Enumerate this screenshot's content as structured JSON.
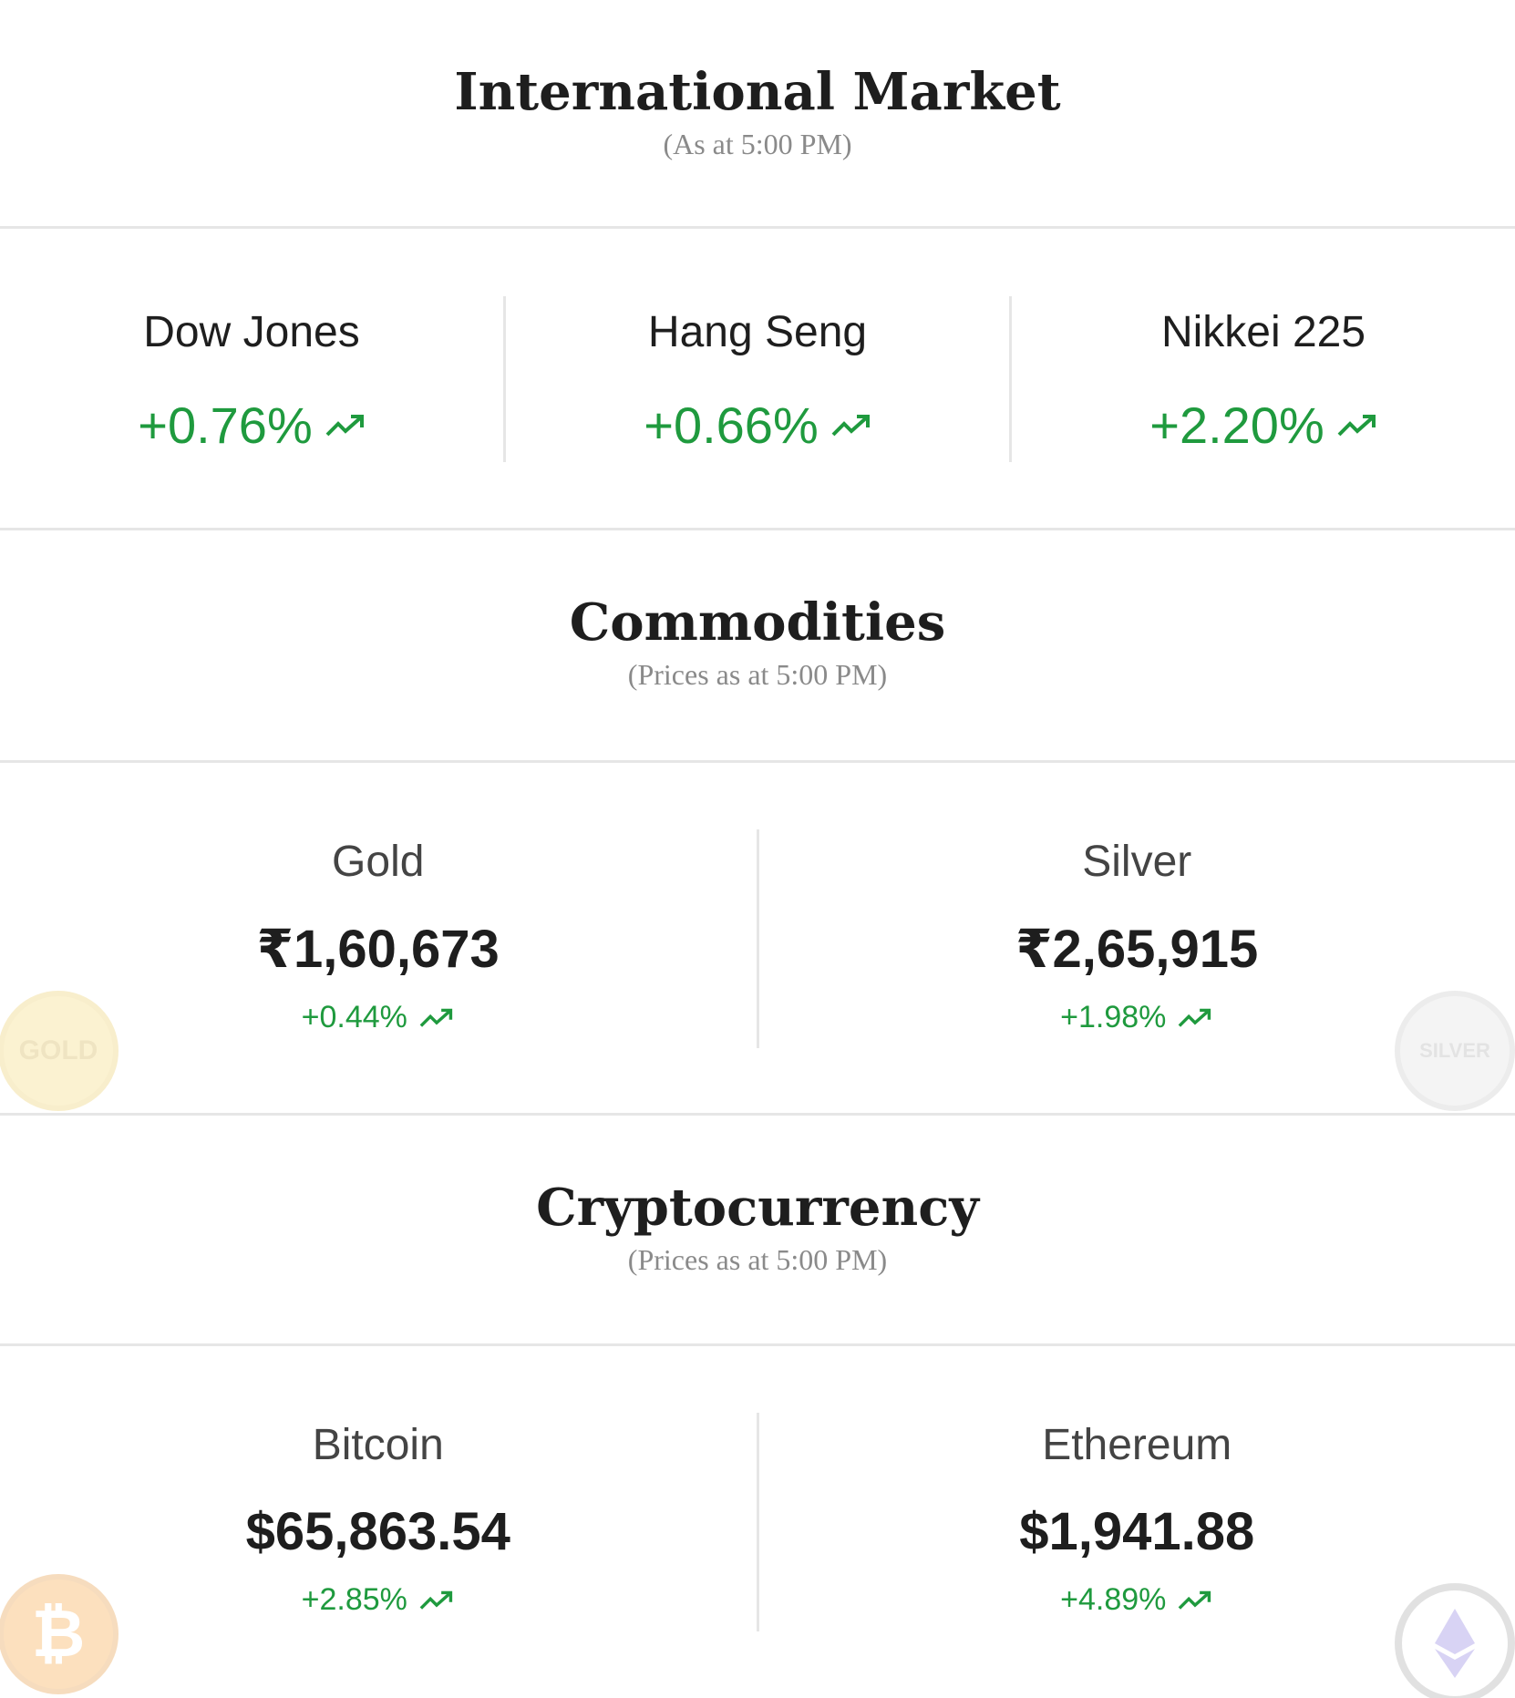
{
  "international": {
    "title": "International Market",
    "subtitle": "(As at 5:00 PM)",
    "indices": [
      {
        "name": "Dow Jones",
        "change": "+0.76%",
        "trend": "up"
      },
      {
        "name": "Hang Seng",
        "change": "+0.66%",
        "trend": "up"
      },
      {
        "name": "Nikkei 225",
        "change": "+2.20%",
        "trend": "up"
      }
    ]
  },
  "commodities": {
    "title": "Commodities",
    "subtitle": "(Prices as at 5:00 PM)",
    "items": [
      {
        "name": "Gold",
        "price": "₹1,60,673",
        "change": "+0.44%",
        "trend": "up",
        "coin_label": "GOLD",
        "coin_icon": "gold-coin-icon"
      },
      {
        "name": "Silver",
        "price": "₹2,65,915",
        "change": "+1.98%",
        "trend": "up",
        "coin_label": "SILVER",
        "coin_icon": "silver-coin-icon"
      }
    ]
  },
  "crypto": {
    "title": "Cryptocurrency",
    "subtitle": "(Prices as at 5:00 PM)",
    "items": [
      {
        "name": "Bitcoin",
        "price": "$65,863.54",
        "change": "+2.85%",
        "trend": "up",
        "coin_icon": "bitcoin-icon"
      },
      {
        "name": "Ethereum",
        "price": "$1,941.88",
        "change": "+4.89%",
        "trend": "up",
        "coin_icon": "ethereum-icon"
      }
    ]
  },
  "colors": {
    "positive": "#1f9a3e",
    "divider": "#e6e6e6",
    "gold": "#f4d35e",
    "silver": "#d9d9d9",
    "bitcoin": "#f7931a"
  }
}
